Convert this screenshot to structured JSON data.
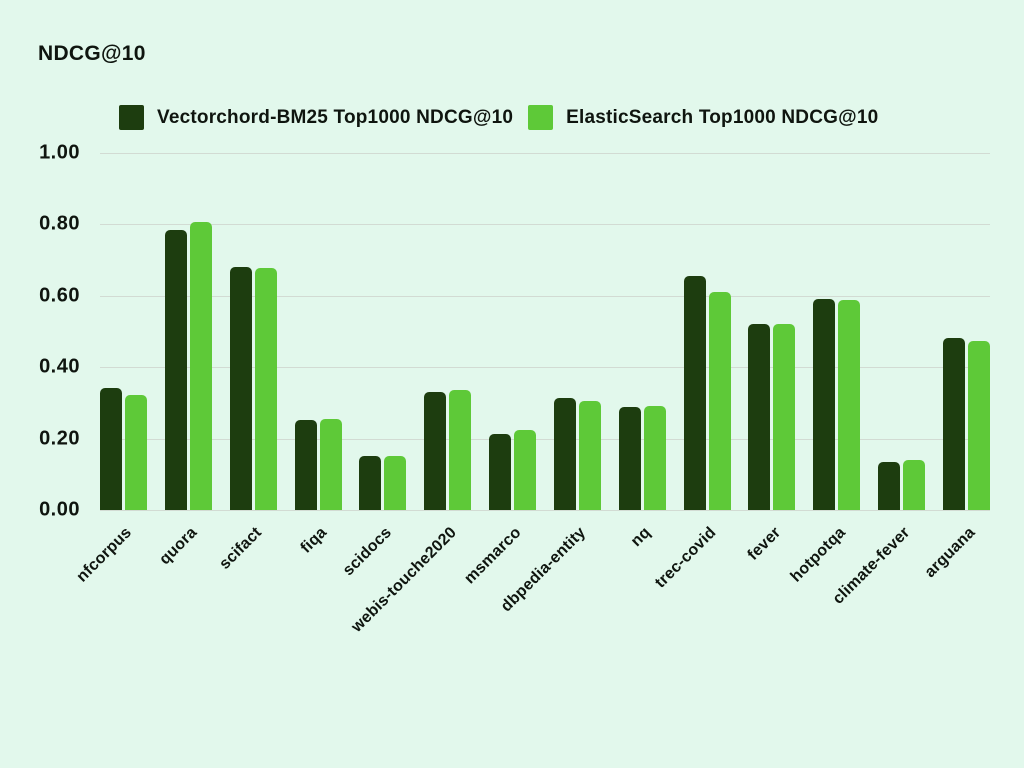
{
  "page": {
    "background_color": "#e2f8ec",
    "text_color": "#0f150f",
    "gridline_color": "#d2dbd3"
  },
  "header": {
    "title": "NDCG@10"
  },
  "chart_data": {
    "type": "bar",
    "title": "NDCG@10",
    "xlabel": "",
    "ylabel": "NDCG@10",
    "ylim": [
      0,
      1
    ],
    "yticks": [
      "0.00",
      "0.20",
      "0.40",
      "0.60",
      "0.80",
      "1.00"
    ],
    "grid": true,
    "legend_position": "top",
    "categories": [
      "nfcorpus",
      "quora",
      "scifact",
      "fiqa",
      "scidocs",
      "webis-touche2020",
      "msmarco",
      "dbpedia-entity",
      "nq",
      "trec-covid",
      "fever",
      "hotpotqa",
      "climate-fever",
      "arguana"
    ],
    "series": [
      {
        "id": "vectorchord-bm25",
        "name": "Vectorchord-BM25 Top1000 NDCG@10",
        "color": "#1d3d0f",
        "values": [
          0.343,
          0.784,
          0.68,
          0.251,
          0.152,
          0.33,
          0.212,
          0.314,
          0.288,
          0.656,
          0.52,
          0.59,
          0.135,
          0.483
        ]
      },
      {
        "id": "elasticsearch",
        "name": "ElasticSearch Top1000 NDCG@10",
        "color": "#5ec938",
        "values": [
          0.321,
          0.808,
          0.677,
          0.254,
          0.15,
          0.335,
          0.225,
          0.305,
          0.29,
          0.611,
          0.521,
          0.588,
          0.14,
          0.473
        ]
      }
    ]
  }
}
